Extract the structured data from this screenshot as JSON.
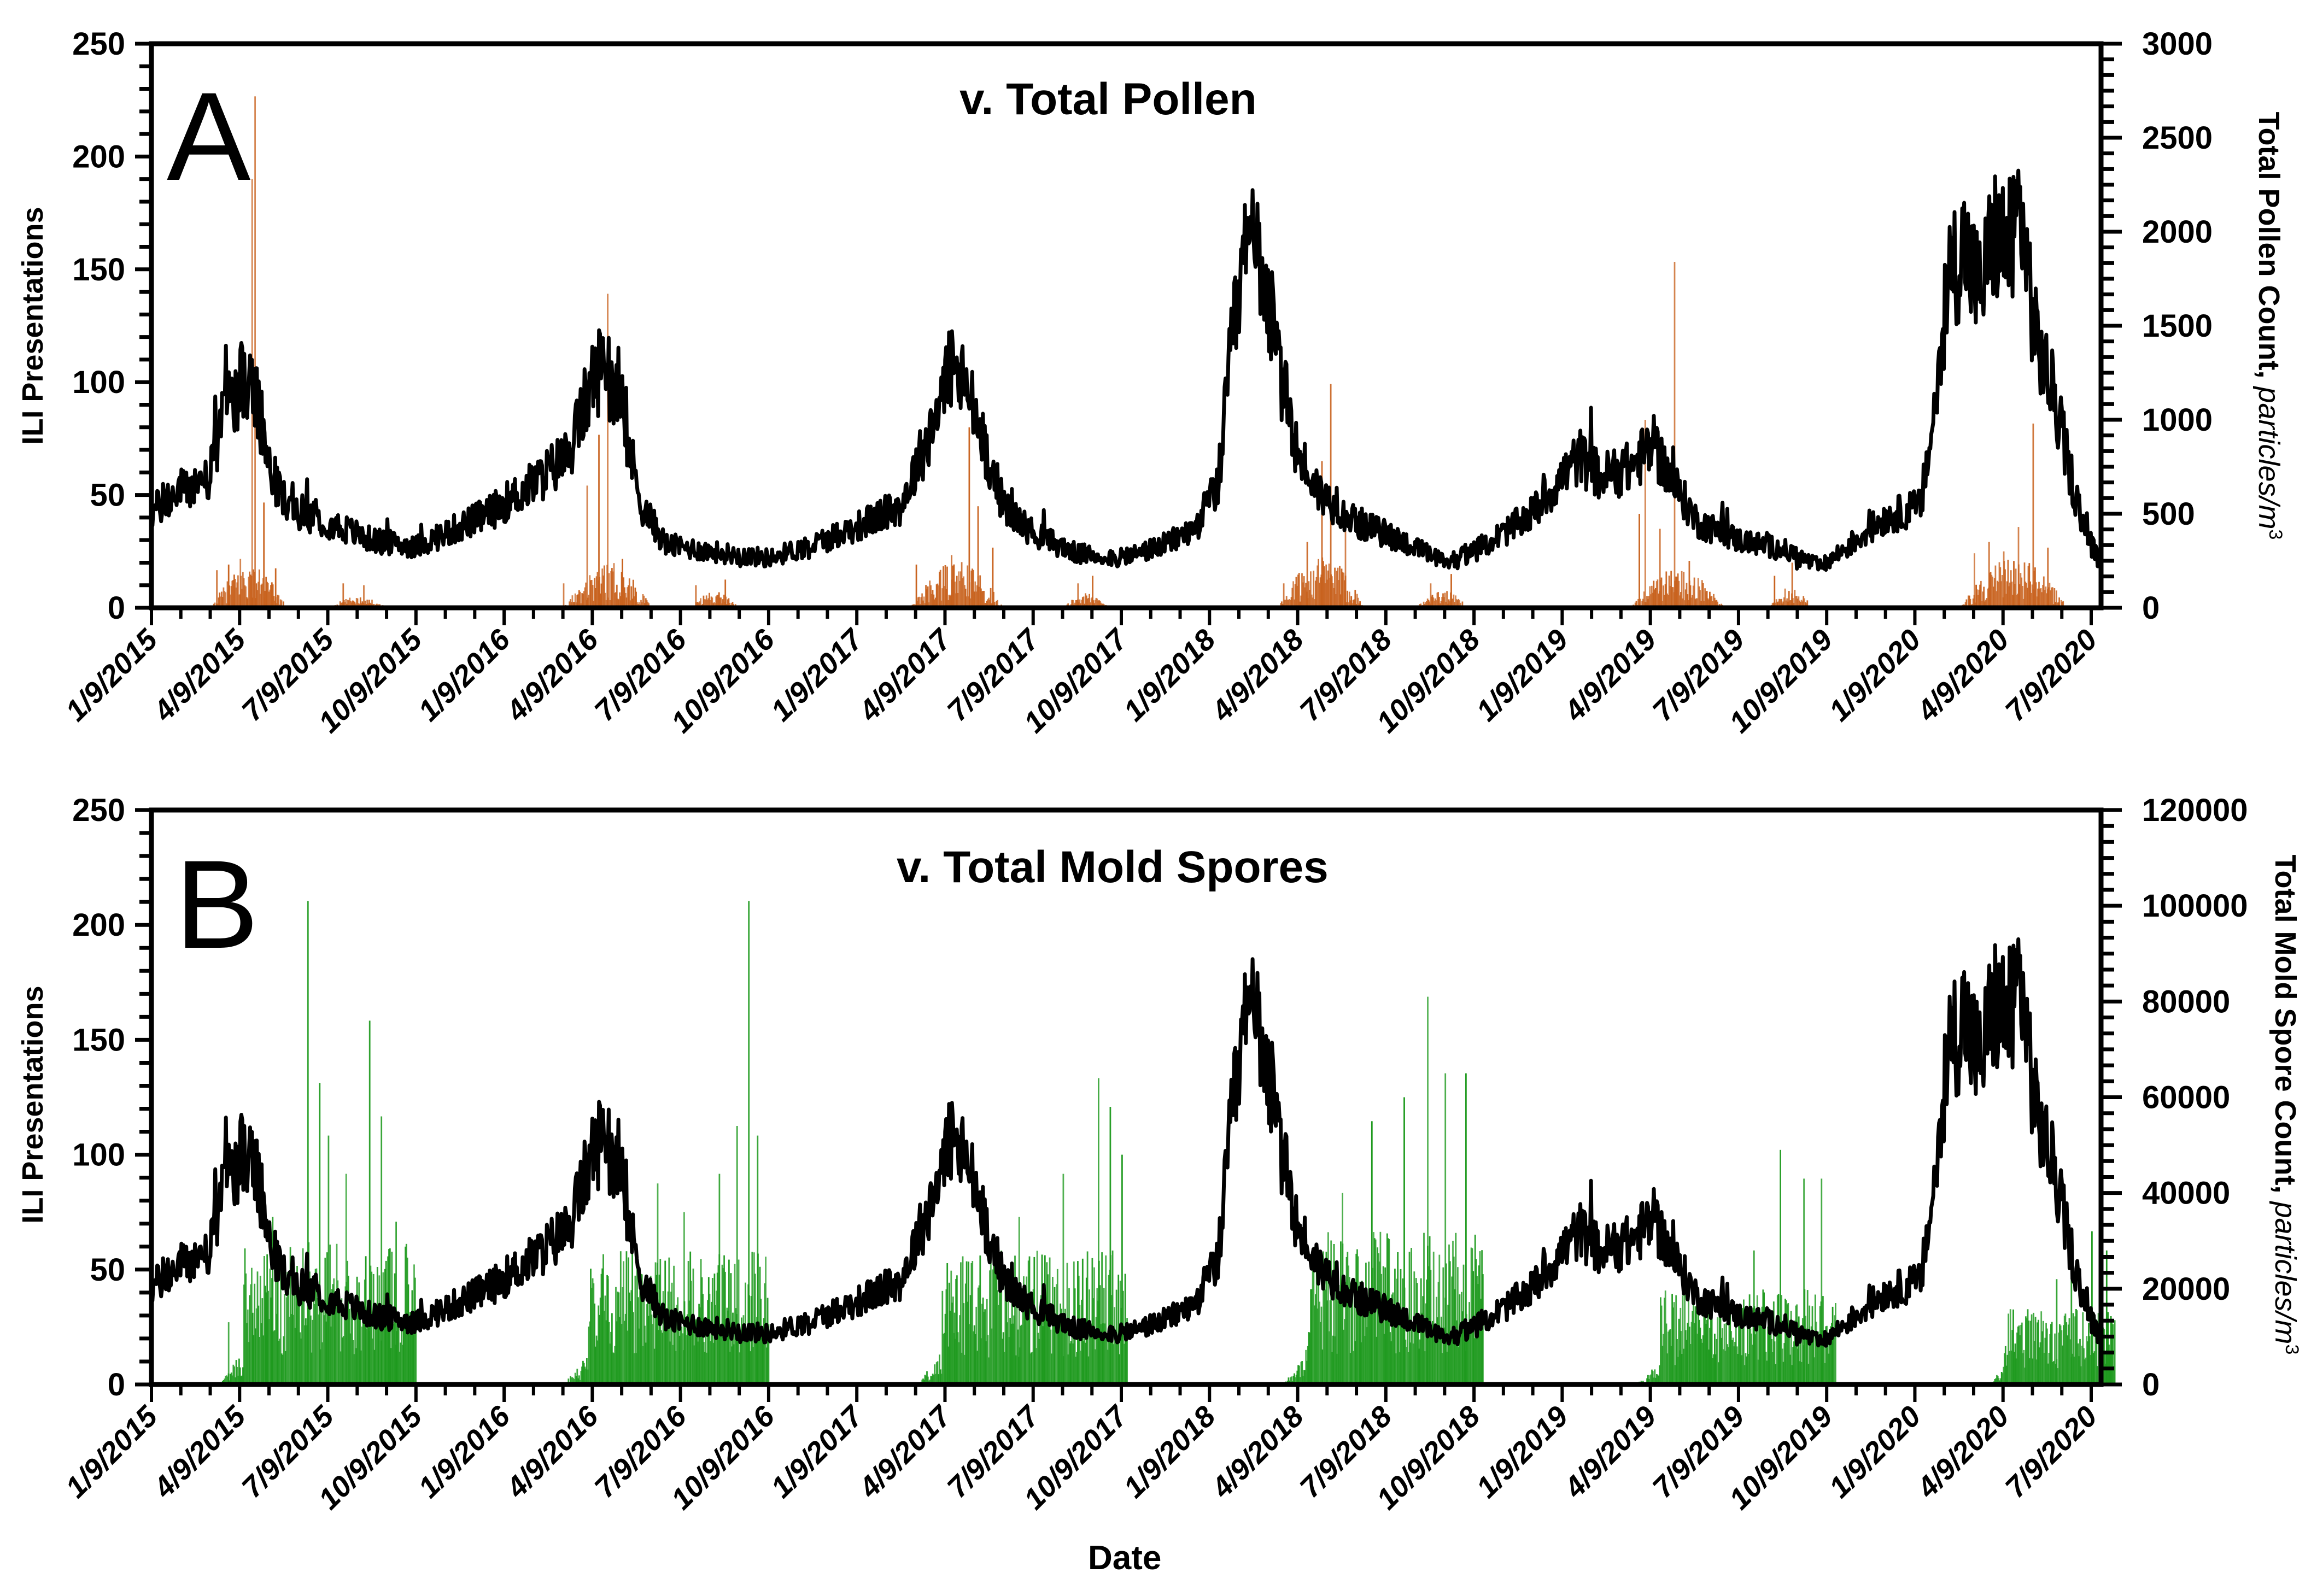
{
  "figure": {
    "x_axis_label": "Date",
    "x_tick_labels": [
      "1/9/2015",
      "4/9/2015",
      "7/9/2015",
      "10/9/2015",
      "1/9/2016",
      "4/9/2016",
      "7/9/2016",
      "10/9/2016",
      "1/9/2017",
      "4/9/2017",
      "7/9/2017",
      "10/9/2017",
      "1/9/2018",
      "4/9/2018",
      "7/9/2018",
      "10/9/2018",
      "1/9/2019",
      "4/9/2019",
      "7/9/2019",
      "10/9/2019",
      "1/9/2020",
      "4/9/2020",
      "7/9/2020"
    ],
    "colors": {
      "ili_line": "#000000",
      "pollen_bars": "#c8621e",
      "mold_bars": "#1e9a1e",
      "axis": "#000000"
    }
  },
  "panel_a": {
    "letter": "A",
    "title": "v. Total Pollen",
    "left_axis_label": "ILI Presentations",
    "right_axis_label_main": "Total Pollen Count, ",
    "right_axis_label_units": "particles/m",
    "right_axis_label_sup": "3",
    "left_ticks": [
      "0",
      "50",
      "100",
      "150",
      "200",
      "250"
    ],
    "right_ticks": [
      "0",
      "500",
      "1000",
      "1500",
      "2000",
      "2500",
      "3000"
    ]
  },
  "panel_b": {
    "letter": "B",
    "title": "v. Total Mold Spores",
    "left_axis_label": "ILI Presentations",
    "right_axis_label_main": "Total Mold Spore Count, ",
    "right_axis_label_units": "particles/m",
    "right_axis_label_sup": "3",
    "left_ticks": [
      "0",
      "50",
      "100",
      "150",
      "200",
      "250"
    ],
    "right_ticks": [
      "0",
      "20000",
      "40000",
      "60000",
      "80000",
      "100000",
      "120000"
    ]
  },
  "chart_data": [
    {
      "type": "line+bar",
      "title": "v. Total Pollen",
      "panel": "A",
      "xlabel": "Date",
      "ylabel": "ILI Presentations",
      "y2label": "Total Pollen Count, particles/m3",
      "ylim": [
        0,
        250
      ],
      "y2lim": [
        0,
        3000
      ],
      "x_range": [
        "1/9/2015",
        "7/31/2020"
      ],
      "x_unit": "months since 1/9/2015",
      "categories": [
        "1/9/2015",
        "4/9/2015",
        "7/9/2015",
        "10/9/2015",
        "1/9/2016",
        "4/9/2016",
        "7/9/2016",
        "10/9/2016",
        "1/9/2017",
        "4/9/2017",
        "7/9/2017",
        "10/9/2017",
        "1/9/2018",
        "4/9/2018",
        "7/9/2018",
        "10/9/2018",
        "1/9/2019",
        "4/9/2019",
        "7/9/2019",
        "10/9/2019",
        "1/9/2020",
        "4/9/2020",
        "7/9/2020"
      ],
      "series": [
        {
          "name": "ILI Presentations",
          "axis": "left",
          "kind": "line (daily, noisy)",
          "smoothed_points": [
            [
              0,
              42
            ],
            [
              1,
              52
            ],
            [
              2,
              58
            ],
            [
              2.6,
              92
            ],
            [
              3.1,
              100
            ],
            [
              3.5,
              95
            ],
            [
              4,
              62
            ],
            [
              4.6,
              45
            ],
            [
              6,
              38
            ],
            [
              7.5,
              30
            ],
            [
              9,
              27
            ],
            [
              10,
              33
            ],
            [
              11.5,
              42
            ],
            [
              13,
              55
            ],
            [
              14.2,
              68
            ],
            [
              15,
              100
            ],
            [
              15.5,
              112
            ],
            [
              16,
              85
            ],
            [
              16.7,
              45
            ],
            [
              17.5,
              28
            ],
            [
              19,
              25
            ],
            [
              21,
              22
            ],
            [
              22.5,
              28
            ],
            [
              24,
              36
            ],
            [
              25.5,
              45
            ],
            [
              26.4,
              75
            ],
            [
              27.2,
              108
            ],
            [
              27.8,
              95
            ],
            [
              28.4,
              70
            ],
            [
              29,
              45
            ],
            [
              30,
              33
            ],
            [
              31.5,
              24
            ],
            [
              33,
              22
            ],
            [
              34.5,
              28
            ],
            [
              35.5,
              35
            ],
            [
              36.3,
              55
            ],
            [
              36.8,
              120
            ],
            [
              37.3,
              162
            ],
            [
              37.8,
              155
            ],
            [
              38.3,
              110
            ],
            [
              39,
              68
            ],
            [
              39.8,
              50
            ],
            [
              41,
              38
            ],
            [
              42.5,
              30
            ],
            [
              44,
              20
            ],
            [
              45,
              25
            ],
            [
              46,
              33
            ],
            [
              47,
              42
            ],
            [
              48,
              58
            ],
            [
              48.6,
              67
            ],
            [
              49.3,
              58
            ],
            [
              50.3,
              62
            ],
            [
              51.1,
              72
            ],
            [
              51.8,
              55
            ],
            [
              52.6,
              38
            ],
            [
              54,
              30
            ],
            [
              55.5,
              26
            ],
            [
              56.8,
              18
            ],
            [
              57.8,
              28
            ],
            [
              59,
              40
            ],
            [
              60.2,
              45
            ],
            [
              60.7,
              90
            ],
            [
              61.2,
              150
            ],
            [
              61.7,
              160
            ],
            [
              62.2,
              140
            ],
            [
              62.7,
              165
            ],
            [
              63.2,
              160
            ],
            [
              63.6,
              178
            ],
            [
              64.1,
              120
            ],
            [
              64.7,
              95
            ],
            [
              65.2,
              65
            ],
            [
              65.7,
              38
            ],
            [
              66.2,
              22
            ],
            [
              66.8,
              18
            ]
          ],
          "notable_peaks": [
            {
              "date": "~4/2015",
              "value": 128
            },
            {
              "date": "~3/2016",
              "value": 138
            },
            {
              "date": "~2/2017",
              "value": 115
            },
            {
              "date": "~4/2017",
              "value": 138
            },
            {
              "date": "~1/2018",
              "value": 188
            },
            {
              "date": "~3/2019",
              "value": 90
            },
            {
              "date": "~1/2020",
              "value": 208
            },
            {
              "date": "~3/2020",
              "value": 222
            }
          ]
        },
        {
          "name": "Total Pollen Count",
          "axis": "right",
          "kind": "bar (daily)",
          "spikes": [
            [
              2.2,
              200
            ],
            [
              2.6,
              230
            ],
            [
              3.0,
              260
            ],
            [
              3.5,
              2720
            ],
            [
              3.4,
              2280
            ],
            [
              3.8,
              560
            ],
            [
              4.2,
              210
            ],
            [
              6.5,
              130
            ],
            [
              7.2,
              120
            ],
            [
              14.0,
              130
            ],
            [
              14.8,
              650
            ],
            [
              15.5,
              1670
            ],
            [
              15.2,
              920
            ],
            [
              16.0,
              260
            ],
            [
              18.5,
              120
            ],
            [
              19.5,
              150
            ],
            [
              26.0,
              230
            ],
            [
              27.2,
              280
            ],
            [
              27.8,
              960
            ],
            [
              28.1,
              540
            ],
            [
              28.6,
              320
            ],
            [
              31.5,
              130
            ],
            [
              32,
              170
            ],
            [
              38.5,
              130
            ],
            [
              39.3,
              350
            ],
            [
              39.8,
              780
            ],
            [
              40.1,
              1190
            ],
            [
              40.6,
              420
            ],
            [
              43.5,
              130
            ],
            [
              44.2,
              180
            ],
            [
              50.6,
              500
            ],
            [
              50.8,
              1000
            ],
            [
              51.3,
              420
            ],
            [
              51.8,
              1840
            ],
            [
              52.3,
              250
            ],
            [
              55.2,
              170
            ],
            [
              55.8,
              240
            ],
            [
              62.0,
              290
            ],
            [
              62.5,
              350
            ],
            [
              63.0,
              300
            ],
            [
              63.5,
              430
            ],
            [
              64.0,
              980
            ],
            [
              64.5,
              320
            ]
          ]
        }
      ]
    },
    {
      "type": "line+bar",
      "title": "v. Total Mold Spores",
      "panel": "B",
      "xlabel": "Date",
      "ylabel": "ILI Presentations",
      "y2label": "Total Mold Spore Count, particles/m3",
      "ylim": [
        0,
        250
      ],
      "y2lim": [
        0,
        120000
      ],
      "categories": [
        "1/9/2015",
        "4/9/2015",
        "7/9/2015",
        "10/9/2015",
        "1/9/2016",
        "4/9/2016",
        "7/9/2016",
        "10/9/2016",
        "1/9/2017",
        "4/9/2017",
        "7/9/2017",
        "10/9/2017",
        "1/9/2018",
        "4/9/2018",
        "7/9/2018",
        "10/9/2018",
        "1/9/2019",
        "4/9/2019",
        "7/9/2019",
        "10/9/2019",
        "1/9/2020",
        "4/9/2020",
        "7/9/2020"
      ],
      "series": [
        {
          "name": "ILI Presentations",
          "axis": "left",
          "kind": "line (daily, noisy)",
          "note": "same ILI series as panel A"
        },
        {
          "name": "Total Mold Spore Count",
          "axis": "right",
          "kind": "bar (daily)",
          "seasons": [
            {
              "start": 2.3,
              "end": 9.0,
              "typical": 15000,
              "peaks": [
                [
                  2.6,
                  13000
                ],
                [
                  4.1,
                  35000
                ],
                [
                  5.3,
                  101000
                ],
                [
                  5.7,
                  63000
                ],
                [
                  6.0,
                  52000
                ],
                [
                  6.6,
                  44000
                ],
                [
                  7.4,
                  76000
                ],
                [
                  7.8,
                  56000
                ],
                [
                  8.3,
                  34000
                ]
              ]
            },
            {
              "start": 14.0,
              "end": 21.0,
              "typical": 14000,
              "peaks": [
                [
                  15.5,
                  22000
                ],
                [
                  17.2,
                  42000
                ],
                [
                  18.1,
                  36000
                ],
                [
                  19.3,
                  44000
                ],
                [
                  19.9,
                  54000
                ],
                [
                  20.3,
                  101000
                ],
                [
                  20.6,
                  52000
                ]
              ]
            },
            {
              "start": 26.0,
              "end": 33.2,
              "typical": 14000,
              "peaks": [
                [
                  27.3,
                  15000
                ],
                [
                  29.5,
                  35000
                ],
                [
                  31.0,
                  44000
                ],
                [
                  32.2,
                  64000
                ],
                [
                  32.6,
                  58000
                ],
                [
                  33.0,
                  48000
                ]
              ]
            },
            {
              "start": 38.5,
              "end": 45.3,
              "typical": 16000,
              "peaks": [
                [
                  40.5,
                  40000
                ],
                [
                  41.5,
                  55000
                ],
                [
                  42.6,
                  60000
                ],
                [
                  43.4,
                  81000
                ],
                [
                  44.0,
                  65000
                ],
                [
                  44.7,
                  65000
                ]
              ]
            },
            {
              "start": 50.5,
              "end": 57.3,
              "typical": 10000,
              "peaks": [
                [
                  52.0,
                  16000
                ],
                [
                  54.5,
                  28000
                ],
                [
                  55.4,
                  49000
                ],
                [
                  56.2,
                  43000
                ],
                [
                  56.8,
                  43000
                ]
              ]
            },
            {
              "start": 62.5,
              "end": 66.8,
              "typical": 8000,
              "peaks": [
                [
                  64.8,
                  22000
                ],
                [
                  65.3,
                  25000
                ],
                [
                  66.0,
                  32000
                ],
                [
                  66.5,
                  28000
                ]
              ]
            }
          ]
        }
      ]
    }
  ]
}
